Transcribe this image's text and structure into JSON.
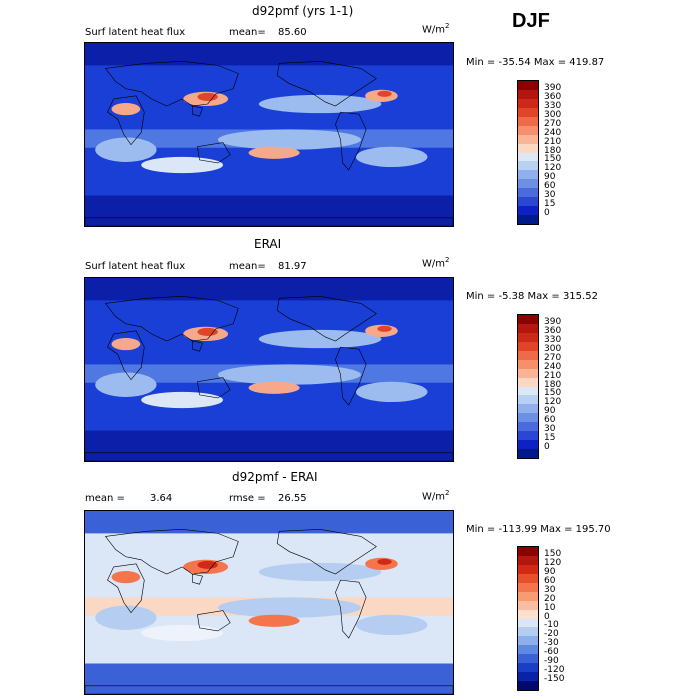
{
  "season": "DJF",
  "panels": [
    {
      "title": "d92pmf (yrs 1-1)",
      "left_text": "Surf latent heat flux",
      "mean_label": "mean=",
      "mean_value": "85.60",
      "units_base": "W/m",
      "units_exp": "2",
      "min_max": "Min = -35.54 Max = 419.87",
      "colorbar_labels": [
        "390",
        "360",
        "330",
        "300",
        "270",
        "240",
        "210",
        "180",
        "150",
        "120",
        "90",
        "60",
        "30",
        "15",
        "0"
      ],
      "colorbar_colors": [
        "#8b0000",
        "#b3150f",
        "#cc2a18",
        "#e0452a",
        "#ee6a48",
        "#f58f6c",
        "#f9b596",
        "#fbd8c4",
        "#dce8f6",
        "#b8d0f2",
        "#8fb0ec",
        "#6d8fe4",
        "#4a6bdc",
        "#2b46d2",
        "#0e22c4",
        "#001a8c"
      ],
      "map_colors": {
        "base": "#1a3fd6",
        "mid": "#4f78e2",
        "light": "#9cbcef",
        "pale": "#dbe6f7",
        "warm": "#f6a98a",
        "hot": "#e0452a",
        "dark": "#0b1fa8"
      }
    },
    {
      "title": "ERAI",
      "left_text": "Surf latent heat flux",
      "mean_label": "mean=",
      "mean_value": "81.97",
      "units_base": "W/m",
      "units_exp": "2",
      "min_max": "Min =   -5.38 Max = 315.52",
      "colorbar_labels": [
        "390",
        "360",
        "330",
        "300",
        "270",
        "240",
        "210",
        "180",
        "150",
        "120",
        "90",
        "60",
        "30",
        "15",
        "0"
      ],
      "colorbar_colors": [
        "#8b0000",
        "#b3150f",
        "#cc2a18",
        "#e0452a",
        "#ee6a48",
        "#f58f6c",
        "#f9b596",
        "#fbd8c4",
        "#dce8f6",
        "#b8d0f2",
        "#8fb0ec",
        "#6d8fe4",
        "#4a6bdc",
        "#2b46d2",
        "#0e22c4",
        "#001a8c"
      ],
      "map_colors": {
        "base": "#1a3fd6",
        "mid": "#4f78e2",
        "light": "#9cbcef",
        "pale": "#dbe6f7",
        "warm": "#f6a98a",
        "hot": "#e0452a",
        "dark": "#0b1fa8"
      }
    },
    {
      "title": "d92pmf - ERAI",
      "left_text": "mean =",
      "mean_label": "rmse =",
      "mean_value": "26.55",
      "extra_value": "3.64",
      "units_base": "W/m",
      "units_exp": "2",
      "min_max": "Min = -113.99 Max = 195.70",
      "colorbar_labels": [
        "150",
        "120",
        "90",
        "60",
        "30",
        "20",
        "10",
        "0",
        "-10",
        "-20",
        "-30",
        "-60",
        "-90",
        "-120",
        "-150"
      ],
      "colorbar_colors": [
        "#8b0000",
        "#b3150f",
        "#d02a16",
        "#e8502c",
        "#f4754c",
        "#f89a72",
        "#fbbea0",
        "#fde0d0",
        "#d9e6f7",
        "#b4cdf1",
        "#8dafea",
        "#5f88e0",
        "#3a62d6",
        "#1a3ec6",
        "#0a22a8",
        "#000a6e"
      ],
      "map_colors": {
        "base": "#dbe6f7",
        "mid": "#fbd8c4",
        "light": "#b4cdf1",
        "pale": "#eef3fb",
        "warm": "#f4754c",
        "hot": "#d02a16",
        "dark": "#3a62d6"
      }
    }
  ]
}
